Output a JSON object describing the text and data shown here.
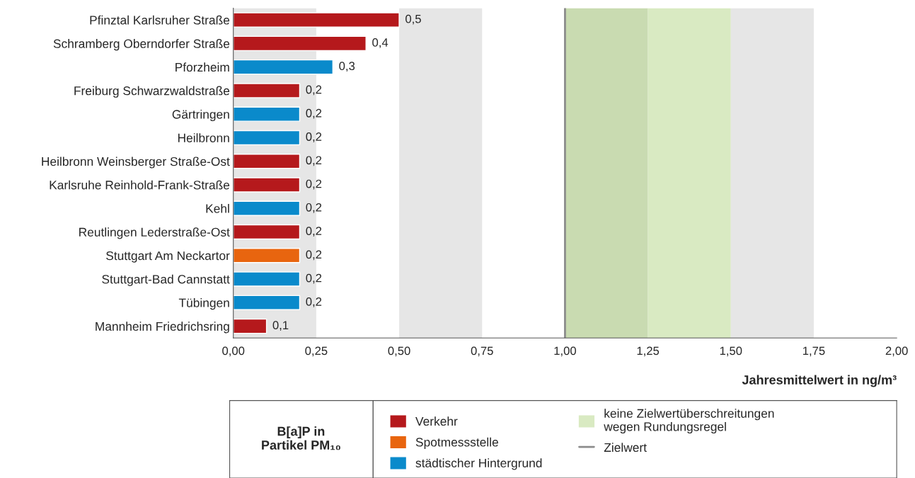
{
  "chart_data": {
    "type": "bar",
    "orientation": "horizontal",
    "stacked": true,
    "categories": [
      "Pfinztal Karlsruher Straße",
      "Schramberg Oberndorfer Straße",
      "Pforzheim",
      "Freiburg Schwarzwaldstraße",
      "Gärtringen",
      "Heilbronn",
      "Heilbronn Weinsberger Straße-Ost",
      "Karlsruhe Reinhold-Frank-Straße",
      "Kehl",
      "Reutlingen Lederstraße-Ost",
      "Stuttgart Am Neckartor",
      "Stuttgart-Bad Cannstatt",
      "Tübingen",
      "Mannheim Friedrichsring"
    ],
    "series": [
      {
        "name": "Verkehr",
        "color": "#b5191c",
        "values": [
          0.5,
          0.4,
          null,
          0.2,
          null,
          null,
          0.2,
          0.2,
          null,
          0.2,
          null,
          null,
          null,
          0.1
        ],
        "value_labels": [
          "0,5",
          "0,4",
          null,
          "0,2",
          null,
          null,
          "0,2",
          "0,2",
          null,
          "0,2",
          null,
          null,
          null,
          "0,1"
        ]
      },
      {
        "name": "Spotmessstelle",
        "color": "#e8650f",
        "values": [
          null,
          null,
          null,
          null,
          null,
          null,
          null,
          null,
          null,
          null,
          0.2,
          null,
          null,
          null
        ],
        "value_labels": [
          null,
          null,
          null,
          null,
          null,
          null,
          null,
          null,
          null,
          null,
          "0,2",
          null,
          null,
          null
        ]
      },
      {
        "name": "städtischer Hintergrund",
        "color": "#0a8acb",
        "values": [
          null,
          null,
          0.3,
          null,
          0.2,
          0.2,
          null,
          null,
          0.2,
          null,
          null,
          0.2,
          0.2,
          null
        ],
        "value_labels": [
          null,
          null,
          "0,3",
          null,
          "0,2",
          "0,2",
          null,
          null,
          "0,2",
          null,
          null,
          "0,2",
          "0,2",
          null
        ]
      }
    ],
    "xlim": [
      0,
      2
    ],
    "xticks": [
      {
        "value": 0,
        "label": "0,00"
      },
      {
        "value": 0.25,
        "label": "0,25"
      },
      {
        "value": 0.5,
        "label": "0,50"
      },
      {
        "value": 0.75,
        "label": "0,75"
      },
      {
        "value": 1,
        "label": "1,00"
      },
      {
        "value": 1.25,
        "label": "1,25"
      },
      {
        "value": 1.5,
        "label": "1,50"
      },
      {
        "value": 1.75,
        "label": "1,75"
      },
      {
        "value": 2,
        "label": "2,00"
      }
    ],
    "xlabel": "Jahresmittelwert in ng/m³",
    "legend_title": "B[a]P in\nPartikel PM₁₀",
    "legend": "bottom",
    "grid": false,
    "bands": [
      {
        "axis": "x",
        "from": 0,
        "to": 0.25,
        "color": "#e6e6e6"
      },
      {
        "axis": "x",
        "from": 0.5,
        "to": 0.75,
        "color": "#e6e6e6"
      },
      {
        "axis": "x",
        "from": 1.0,
        "to": 1.25,
        "color": "#c9dbb1"
      },
      {
        "axis": "x",
        "from": 1.25,
        "to": 1.5,
        "color": "#d9eac2",
        "label": "keine Zielwertüberschreitungen\nwegen Rundungsregel"
      },
      {
        "axis": "x",
        "from": 1.5,
        "to": 1.75,
        "color": "#e6e6e6"
      }
    ],
    "ref_lines": [
      {
        "axis": "x",
        "value": 1.0,
        "label": "Zielwert",
        "color": "#8c8c8c",
        "line_style": "solid"
      }
    ]
  }
}
